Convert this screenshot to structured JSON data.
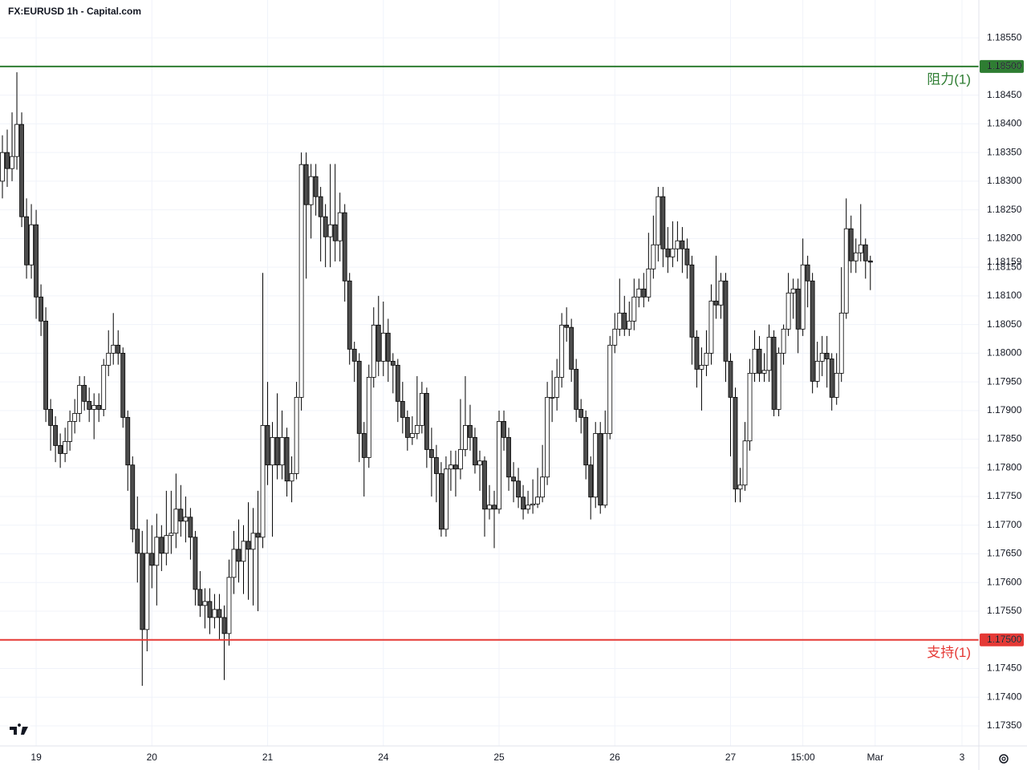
{
  "chart_data": {
    "type": "candlestick",
    "title": "FX:EURUSD 1h - Capital.com",
    "up_color": "#ffffff",
    "down_color": "#4d4d4d",
    "wick_color": "#000000",
    "grid": true,
    "xlim": [
      -0.5,
      202.5
    ],
    "xticks": [
      {
        "value": 7,
        "label": "19"
      },
      {
        "value": 31,
        "label": "20"
      },
      {
        "value": 55,
        "label": "21"
      },
      {
        "value": 79,
        "label": "24"
      },
      {
        "value": 103,
        "label": "25"
      },
      {
        "value": 127,
        "label": "26"
      },
      {
        "value": 151,
        "label": "27"
      },
      {
        "value": 166,
        "label": "15:00"
      },
      {
        "value": 181,
        "label": "Mar"
      },
      {
        "value": 199,
        "label": "3"
      }
    ],
    "ylim": [
      1.17315,
      1.18616
    ],
    "yticks": [
      {
        "value": 1.1735,
        "label": "1.17350"
      },
      {
        "value": 1.174,
        "label": "1.17400"
      },
      {
        "value": 1.1745,
        "label": "1.17450"
      },
      {
        "value": 1.175,
        "label": "1.17500"
      },
      {
        "value": 1.1755,
        "label": "1.17550"
      },
      {
        "value": 1.176,
        "label": "1.17600"
      },
      {
        "value": 1.1765,
        "label": "1.17650"
      },
      {
        "value": 1.177,
        "label": "1.17700"
      },
      {
        "value": 1.1775,
        "label": "1.17750"
      },
      {
        "value": 1.178,
        "label": "1.17800"
      },
      {
        "value": 1.1785,
        "label": "1.17850"
      },
      {
        "value": 1.179,
        "label": "1.17900"
      },
      {
        "value": 1.1795,
        "label": "1.17950"
      },
      {
        "value": 1.18,
        "label": "1.18000"
      },
      {
        "value": 1.1805,
        "label": "1.18050"
      },
      {
        "value": 1.181,
        "label": "1.18100"
      },
      {
        "value": 1.1815,
        "label": "1.18150"
      },
      {
        "value": 1.182,
        "label": "1.18200"
      },
      {
        "value": 1.1825,
        "label": "1.18250"
      },
      {
        "value": 1.183,
        "label": "1.18300"
      },
      {
        "value": 1.1835,
        "label": "1.18350"
      },
      {
        "value": 1.184,
        "label": "1.18400"
      },
      {
        "value": 1.1845,
        "label": "1.18450"
      },
      {
        "value": 1.185,
        "label": "1.18500"
      },
      {
        "value": 1.1855,
        "label": "1.18550"
      }
    ],
    "levels": [
      {
        "value": 1.185,
        "label": "阻力(1)",
        "price_label": "1.18500",
        "color": "#2e7d32"
      },
      {
        "value": 1.175,
        "label": "支持(1)",
        "price_label": "1.17500",
        "color": "#e53935"
      }
    ],
    "last_price": {
      "value": 1.18159,
      "label": "1.18159"
    },
    "candles": [
      [
        1.183,
        1.1838,
        1.1827,
        1.1835
      ],
      [
        1.1835,
        1.1839,
        1.1829,
        1.18322
      ],
      [
        1.18322,
        1.1842,
        1.183,
        1.18343
      ],
      [
        1.18343,
        1.1849,
        1.1832,
        1.18399
      ],
      [
        1.18399,
        1.1842,
        1.1822,
        1.18238
      ],
      [
        1.18238,
        1.1827,
        1.1813,
        1.18154
      ],
      [
        1.18154,
        1.1826,
        1.1813,
        1.18224
      ],
      [
        1.18224,
        1.1825,
        1.1806,
        1.18098
      ],
      [
        1.18098,
        1.1812,
        1.1803,
        1.18056
      ],
      [
        1.18056,
        1.1808,
        1.1788,
        1.17902
      ],
      [
        1.17902,
        1.1792,
        1.1783,
        1.17874
      ],
      [
        1.17874,
        1.1789,
        1.1781,
        1.17839
      ],
      [
        1.17839,
        1.1786,
        1.178,
        1.17825
      ],
      [
        1.17825,
        1.1787,
        1.1781,
        1.17846
      ],
      [
        1.17846,
        1.179,
        1.1783,
        1.17881
      ],
      [
        1.17881,
        1.1792,
        1.1786,
        1.17895
      ],
      [
        1.17895,
        1.1796,
        1.1788,
        1.17944
      ],
      [
        1.17944,
        1.1796,
        1.179,
        1.17916
      ],
      [
        1.17916,
        1.1794,
        1.1788,
        1.17902
      ],
      [
        1.17902,
        1.1793,
        1.1785,
        1.17909
      ],
      [
        1.17909,
        1.1793,
        1.1788,
        1.17902
      ],
      [
        1.17902,
        1.1799,
        1.1789,
        1.17979
      ],
      [
        1.17979,
        1.1804,
        1.1796,
        1.18
      ],
      [
        1.18,
        1.1807,
        1.1798,
        1.18014
      ],
      [
        1.18014,
        1.1804,
        1.1798,
        1.18
      ],
      [
        1.18,
        1.1801,
        1.1787,
        1.17888
      ],
      [
        1.17888,
        1.179,
        1.1776,
        1.17805
      ],
      [
        1.17805,
        1.1782,
        1.1767,
        1.17693
      ],
      [
        1.17693,
        1.1775,
        1.176,
        1.17651
      ],
      [
        1.17651,
        1.1769,
        1.1742,
        1.17518
      ],
      [
        1.17518,
        1.1771,
        1.1748,
        1.17651
      ],
      [
        1.17651,
        1.177,
        1.1759,
        1.1763
      ],
      [
        1.1763,
        1.1772,
        1.1756,
        1.17679
      ],
      [
        1.17679,
        1.177,
        1.1762,
        1.17651
      ],
      [
        1.17651,
        1.1776,
        1.1763,
        1.17682
      ],
      [
        1.17682,
        1.1776,
        1.1765,
        1.17686
      ],
      [
        1.17686,
        1.1779,
        1.1766,
        1.17728
      ],
      [
        1.17728,
        1.1777,
        1.1768,
        1.17707
      ],
      [
        1.17707,
        1.1775,
        1.1767,
        1.17714
      ],
      [
        1.17714,
        1.1773,
        1.1764,
        1.17679
      ],
      [
        1.17679,
        1.1769,
        1.1756,
        1.17588
      ],
      [
        1.17588,
        1.1762,
        1.1754,
        1.1756
      ],
      [
        1.1756,
        1.1759,
        1.1752,
        1.17567
      ],
      [
        1.17567,
        1.1759,
        1.1751,
        1.17539
      ],
      [
        1.17539,
        1.1758,
        1.1752,
        1.17553
      ],
      [
        1.17553,
        1.1758,
        1.175,
        1.17539
      ],
      [
        1.17539,
        1.1756,
        1.1743,
        1.17511
      ],
      [
        1.17511,
        1.1764,
        1.1749,
        1.17609
      ],
      [
        1.17609,
        1.1769,
        1.1758,
        1.17658
      ],
      [
        1.17658,
        1.1771,
        1.176,
        1.17637
      ],
      [
        1.17637,
        1.177,
        1.1758,
        1.17672
      ],
      [
        1.17672,
        1.1774,
        1.1757,
        1.17658
      ],
      [
        1.17658,
        1.1773,
        1.1756,
        1.17686
      ],
      [
        1.17686,
        1.1776,
        1.1755,
        1.17679
      ],
      [
        1.17679,
        1.1814,
        1.1766,
        1.17874
      ],
      [
        1.17874,
        1.1795,
        1.1777,
        1.17805
      ],
      [
        1.17805,
        1.1788,
        1.1768,
        1.17853
      ],
      [
        1.17853,
        1.1793,
        1.1778,
        1.17805
      ],
      [
        1.17805,
        1.179,
        1.1778,
        1.17853
      ],
      [
        1.17853,
        1.1787,
        1.1775,
        1.17777
      ],
      [
        1.17777,
        1.1782,
        1.1774,
        1.1779
      ],
      [
        1.1779,
        1.1795,
        1.1778,
        1.17923
      ],
      [
        1.17923,
        1.1835,
        1.179,
        1.18329
      ],
      [
        1.18329,
        1.1835,
        1.1813,
        1.18259
      ],
      [
        1.18259,
        1.1833,
        1.182,
        1.18308
      ],
      [
        1.18308,
        1.1833,
        1.1824,
        1.18273
      ],
      [
        1.18273,
        1.1829,
        1.1816,
        1.18238
      ],
      [
        1.18238,
        1.1826,
        1.1815,
        1.18203
      ],
      [
        1.18203,
        1.1833,
        1.1815,
        1.18224
      ],
      [
        1.18224,
        1.1833,
        1.1816,
        1.18196
      ],
      [
        1.18196,
        1.1828,
        1.1816,
        1.18245
      ],
      [
        1.18245,
        1.1826,
        1.1809,
        1.18126
      ],
      [
        1.18126,
        1.1814,
        1.1798,
        1.18007
      ],
      [
        1.18007,
        1.1802,
        1.1795,
        1.17986
      ],
      [
        1.17986,
        1.18,
        1.1781,
        1.1786
      ],
      [
        1.1786,
        1.1788,
        1.1775,
        1.17818
      ],
      [
        1.17818,
        1.1798,
        1.178,
        1.17958
      ],
      [
        1.17958,
        1.1808,
        1.1794,
        1.18049
      ],
      [
        1.18049,
        1.181,
        1.1796,
        1.17986
      ],
      [
        1.17986,
        1.1809,
        1.1796,
        1.18035
      ],
      [
        1.18035,
        1.1806,
        1.1795,
        1.17986
      ],
      [
        1.17986,
        1.18,
        1.1793,
        1.17979
      ],
      [
        1.17979,
        1.1799,
        1.1788,
        1.17916
      ],
      [
        1.17916,
        1.1795,
        1.1786,
        1.17888
      ],
      [
        1.17888,
        1.179,
        1.1783,
        1.17853
      ],
      [
        1.17853,
        1.1789,
        1.1784,
        1.1786
      ],
      [
        1.1786,
        1.1796,
        1.1785,
        1.17874
      ],
      [
        1.17874,
        1.1795,
        1.1786,
        1.1793
      ],
      [
        1.1793,
        1.1794,
        1.178,
        1.17832
      ],
      [
        1.17832,
        1.1787,
        1.1775,
        1.17818
      ],
      [
        1.17818,
        1.1784,
        1.1774,
        1.1779
      ],
      [
        1.1779,
        1.1781,
        1.1768,
        1.17693
      ],
      [
        1.17693,
        1.1782,
        1.1768,
        1.17798
      ],
      [
        1.17798,
        1.1783,
        1.1776,
        1.17805
      ],
      [
        1.17805,
        1.1783,
        1.1775,
        1.17798
      ],
      [
        1.17798,
        1.1792,
        1.1778,
        1.17832
      ],
      [
        1.17832,
        1.1796,
        1.1782,
        1.17874
      ],
      [
        1.17874,
        1.1791,
        1.1783,
        1.17853
      ],
      [
        1.17853,
        1.1787,
        1.1779,
        1.17805
      ],
      [
        1.17805,
        1.1783,
        1.1776,
        1.17812
      ],
      [
        1.17812,
        1.1782,
        1.1768,
        1.17728
      ],
      [
        1.17728,
        1.1777,
        1.1771,
        1.17735
      ],
      [
        1.17735,
        1.1776,
        1.1766,
        1.17728
      ],
      [
        1.17728,
        1.179,
        1.1772,
        1.17881
      ],
      [
        1.17881,
        1.179,
        1.1783,
        1.17853
      ],
      [
        1.17853,
        1.1787,
        1.1776,
        1.17784
      ],
      [
        1.17784,
        1.1781,
        1.1774,
        1.17777
      ],
      [
        1.17777,
        1.178,
        1.1773,
        1.17749
      ],
      [
        1.17749,
        1.1777,
        1.1771,
        1.17728
      ],
      [
        1.17728,
        1.1776,
        1.1772,
        1.17735
      ],
      [
        1.17735,
        1.1778,
        1.1772,
        1.17737
      ],
      [
        1.17737,
        1.178,
        1.1773,
        1.17749
      ],
      [
        1.17749,
        1.1784,
        1.1774,
        1.17784
      ],
      [
        1.17784,
        1.1795,
        1.1777,
        1.17923
      ],
      [
        1.17923,
        1.1797,
        1.1788,
        1.17923
      ],
      [
        1.17923,
        1.1799,
        1.179,
        1.17958
      ],
      [
        1.17958,
        1.1807,
        1.1794,
        1.18049
      ],
      [
        1.18049,
        1.1808,
        1.1802,
        1.18045
      ],
      [
        1.18045,
        1.1806,
        1.1795,
        1.17972
      ],
      [
        1.17972,
        1.1799,
        1.1788,
        1.17902
      ],
      [
        1.17902,
        1.1792,
        1.1786,
        1.17888
      ],
      [
        1.17888,
        1.179,
        1.1778,
        1.17805
      ],
      [
        1.17805,
        1.1782,
        1.1771,
        1.17749
      ],
      [
        1.17749,
        1.1788,
        1.1773,
        1.1786
      ],
      [
        1.1786,
        1.1788,
        1.1772,
        1.17735
      ],
      [
        1.17735,
        1.179,
        1.1773,
        1.1786
      ],
      [
        1.1786,
        1.1803,
        1.1785,
        1.18014
      ],
      [
        1.18014,
        1.1807,
        1.18,
        1.18042
      ],
      [
        1.18042,
        1.1813,
        1.1803,
        1.1807
      ],
      [
        1.1807,
        1.181,
        1.1803,
        1.18042
      ],
      [
        1.18042,
        1.1809,
        1.1803,
        1.18056
      ],
      [
        1.18056,
        1.1813,
        1.1804,
        1.18098
      ],
      [
        1.18098,
        1.1813,
        1.1808,
        1.18112
      ],
      [
        1.18112,
        1.1814,
        1.1808,
        1.18098
      ],
      [
        1.18098,
        1.1821,
        1.1809,
        1.18147
      ],
      [
        1.18147,
        1.1824,
        1.1813,
        1.18189
      ],
      [
        1.18189,
        1.1829,
        1.1816,
        1.18273
      ],
      [
        1.18273,
        1.1829,
        1.1815,
        1.18182
      ],
      [
        1.18182,
        1.1822,
        1.1814,
        1.18168
      ],
      [
        1.18168,
        1.1823,
        1.1815,
        1.18182
      ],
      [
        1.18182,
        1.1823,
        1.1816,
        1.18196
      ],
      [
        1.18196,
        1.1822,
        1.1814,
        1.18182
      ],
      [
        1.18182,
        1.182,
        1.1813,
        1.18154
      ],
      [
        1.18154,
        1.1817,
        1.1798,
        1.18028
      ],
      [
        1.18028,
        1.1804,
        1.1794,
        1.17972
      ],
      [
        1.17972,
        1.1801,
        1.179,
        1.17979
      ],
      [
        1.17979,
        1.1804,
        1.1796,
        1.18
      ],
      [
        1.18,
        1.1812,
        1.1798,
        1.18091
      ],
      [
        1.18091,
        1.1817,
        1.1806,
        1.18084
      ],
      [
        1.18084,
        1.1814,
        1.1806,
        1.18126
      ],
      [
        1.18126,
        1.1814,
        1.1795,
        1.17986
      ],
      [
        1.17986,
        1.18,
        1.1782,
        1.17923
      ],
      [
        1.17923,
        1.1794,
        1.1774,
        1.17763
      ],
      [
        1.17763,
        1.178,
        1.1774,
        1.1777
      ],
      [
        1.1777,
        1.1788,
        1.1776,
        1.17847
      ],
      [
        1.17847,
        1.1799,
        1.1783,
        1.17965
      ],
      [
        1.17965,
        1.1804,
        1.1795,
        1.18007
      ],
      [
        1.18007,
        1.1803,
        1.1795,
        1.17965
      ],
      [
        1.17965,
        1.18,
        1.1795,
        1.1797
      ],
      [
        1.1797,
        1.1805,
        1.1795,
        1.18028
      ],
      [
        1.18028,
        1.1804,
        1.1789,
        1.17902
      ],
      [
        1.17902,
        1.1801,
        1.1789,
        1.18
      ],
      [
        1.18,
        1.1805,
        1.1798,
        1.18042
      ],
      [
        1.18042,
        1.1814,
        1.1803,
        1.18105
      ],
      [
        1.18105,
        1.1813,
        1.1806,
        1.18112
      ],
      [
        1.18112,
        1.1813,
        1.18,
        1.18042
      ],
      [
        1.18042,
        1.182,
        1.1803,
        1.18154
      ],
      [
        1.18154,
        1.1817,
        1.1808,
        1.18126
      ],
      [
        1.18126,
        1.1814,
        1.1793,
        1.17951
      ],
      [
        1.17951,
        1.1802,
        1.1794,
        1.17986
      ],
      [
        1.17986,
        1.1803,
        1.1796,
        1.18
      ],
      [
        1.18,
        1.1803,
        1.1794,
        1.1799
      ],
      [
        1.1799,
        1.18,
        1.179,
        1.17923
      ],
      [
        1.17923,
        1.18,
        1.1791,
        1.17965
      ],
      [
        1.17965,
        1.1815,
        1.1795,
        1.1807
      ],
      [
        1.1807,
        1.1827,
        1.1806,
        1.18217
      ],
      [
        1.18217,
        1.1824,
        1.1814,
        1.18161
      ],
      [
        1.18161,
        1.182,
        1.1814,
        1.18175
      ],
      [
        1.18175,
        1.1826,
        1.1816,
        1.18189
      ],
      [
        1.18189,
        1.182,
        1.1813,
        1.18161
      ],
      [
        1.18161,
        1.1817,
        1.1811,
        1.18159
      ]
    ]
  }
}
